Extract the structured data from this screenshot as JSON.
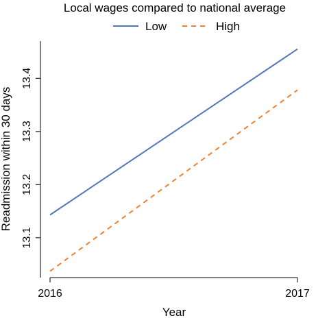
{
  "chart_data": {
    "type": "line",
    "legend": {
      "title": "Local wages compared to national average",
      "position": "top"
    },
    "x": [
      "2016",
      "2017"
    ],
    "series": [
      {
        "name": "Low",
        "values": [
          13.143,
          13.455
        ],
        "color": "#4f77b8",
        "line_style": "solid"
      },
      {
        "name": "High",
        "values": [
          13.037,
          13.378
        ],
        "color": "#ee8032",
        "line_style": "dashed"
      }
    ],
    "xlabel": "Year",
    "ylabel": "Readmission within 30 days",
    "yticks": [
      "13.1",
      "13.2",
      "13.3",
      "13.4"
    ],
    "ylim": [
      13.025,
      13.47
    ],
    "grid": false
  }
}
